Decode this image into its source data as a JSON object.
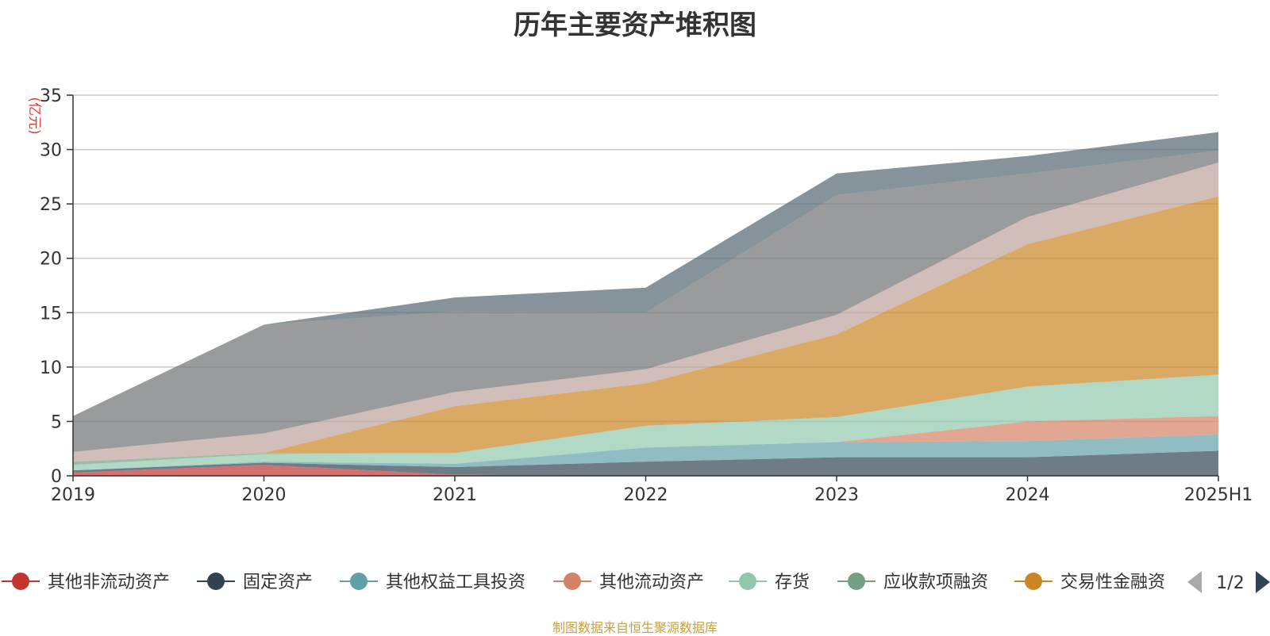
{
  "title": "历年主要资产堆积图",
  "footer": "制图数据来自恒生聚源数据库",
  "chart_data": {
    "type": "area",
    "stacked": true,
    "ylabel": "(亿元)",
    "ylim": [
      0,
      35
    ],
    "yticks": [
      0,
      5,
      10,
      15,
      20,
      25,
      30,
      35
    ],
    "categories": [
      "2019",
      "2020",
      "2021",
      "2022",
      "2023",
      "2024",
      "2025H1"
    ],
    "grid": true,
    "legend_position": "bottom",
    "legend_page": "1/2",
    "series": [
      {
        "name": "其他非流动资产",
        "color": "#c23531",
        "values": [
          0.3,
          1.0,
          0.1,
          0.0,
          0.0,
          0.0,
          0.0
        ]
      },
      {
        "name": "固定资产",
        "color": "#2f4554",
        "values": [
          0.2,
          0.2,
          0.7,
          1.3,
          1.7,
          1.7,
          2.3
        ]
      },
      {
        "name": "其他权益工具投资",
        "color": "#61a0a8",
        "values": [
          0.0,
          0.1,
          0.3,
          1.3,
          1.4,
          1.5,
          1.5
        ]
      },
      {
        "name": "其他流动资产",
        "color": "#d48265",
        "values": [
          0.0,
          0.0,
          0.0,
          0.0,
          0.0,
          1.8,
          1.7
        ]
      },
      {
        "name": "存货",
        "color": "#91c7ae",
        "values": [
          0.5,
          0.7,
          1.0,
          2.0,
          2.3,
          3.2,
          3.8
        ]
      },
      {
        "name": "应收款项融资",
        "color": "#749f83",
        "values": [
          0.3,
          0.1,
          0.0,
          0.0,
          0.0,
          0.0,
          0.0
        ]
      },
      {
        "name": "交易性金融资",
        "color": "#ca8622",
        "values": [
          0.0,
          0.0,
          4.3,
          3.9,
          7.6,
          13.1,
          16.4
        ]
      },
      {
        "name": "",
        "color": "#bda29a",
        "values": [
          0.9,
          1.8,
          1.3,
          1.3,
          1.8,
          2.5,
          3.1
        ]
      },
      {
        "name": "",
        "color": "#6e7074",
        "values": [
          3.3,
          10.0,
          7.4,
          5.2,
          11.0,
          4.0,
          1.1
        ]
      },
      {
        "name": "",
        "color": "#546570",
        "values": [
          0.0,
          0.0,
          1.3,
          2.3,
          2.0,
          1.6,
          1.7
        ]
      }
    ]
  }
}
